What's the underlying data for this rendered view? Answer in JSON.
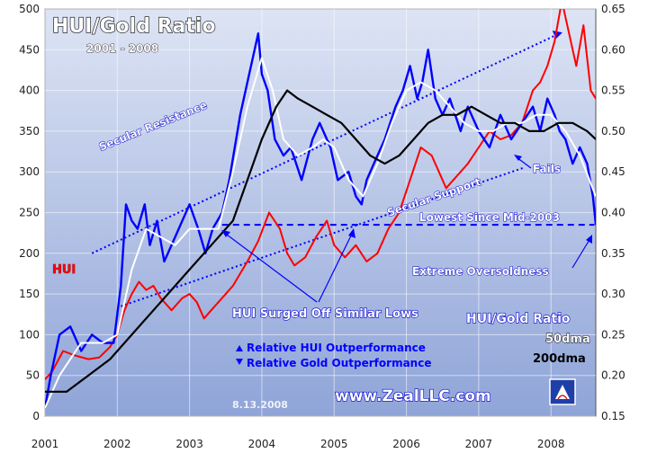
{
  "chart_data": {
    "type": "line",
    "title": "HUI/Gold Ratio",
    "subtitle": "2001 - 2008",
    "date_stamp": "8.13.2008",
    "website": "www.ZealLLC.com",
    "x_ticks": [
      "2001",
      "2002",
      "2003",
      "2004",
      "2005",
      "2006",
      "2007",
      "2008"
    ],
    "x_range": [
      2001.0,
      2008.62
    ],
    "y_left": {
      "ticks": [
        "0",
        "50",
        "100",
        "150",
        "200",
        "250",
        "300",
        "350",
        "400",
        "450",
        "500"
      ],
      "range": [
        0,
        500
      ]
    },
    "y_right": {
      "ticks": [
        "0.15",
        "0.20",
        "0.25",
        "0.30",
        "0.35",
        "0.40",
        "0.45",
        "0.50",
        "0.55",
        "0.60",
        "0.65"
      ],
      "range": [
        0.15,
        0.65
      ]
    },
    "grid": true,
    "colors": {
      "hui": "#ff0000",
      "ratio": "#0000ff",
      "ratio_50dma": "#ffffff",
      "ratio_200dma": "#000000",
      "annotation": "#0000ff",
      "bg_top": "#dde4f4",
      "bg_bottom": "#8fa4d8"
    },
    "series": [
      {
        "name": "HUI",
        "axis": "left",
        "x": [
          2001.0,
          2001.1,
          2001.25,
          2001.4,
          2001.6,
          2001.75,
          2001.9,
          2002.0,
          2002.1,
          2002.2,
          2002.3,
          2002.4,
          2002.5,
          2002.6,
          2002.75,
          2002.9,
          2003.0,
          2003.1,
          2003.2,
          2003.3,
          2003.45,
          2003.6,
          2003.8,
          2003.95,
          2004.1,
          2004.25,
          2004.35,
          2004.45,
          2004.6,
          2004.75,
          2004.9,
          2005.0,
          2005.15,
          2005.3,
          2005.45,
          2005.6,
          2005.75,
          2005.9,
          2006.05,
          2006.2,
          2006.35,
          2006.45,
          2006.55,
          2006.7,
          2006.85,
          2007.0,
          2007.15,
          2007.3,
          2007.45,
          2007.6,
          2007.75,
          2007.85,
          2007.95,
          2008.05,
          2008.15,
          2008.25,
          2008.35,
          2008.45,
          2008.55,
          2008.62
        ],
        "values": [
          45,
          55,
          80,
          75,
          70,
          72,
          85,
          100,
          130,
          150,
          165,
          155,
          160,
          145,
          130,
          145,
          150,
          140,
          120,
          130,
          145,
          160,
          190,
          215,
          250,
          230,
          200,
          185,
          195,
          220,
          240,
          210,
          195,
          210,
          190,
          200,
          230,
          250,
          290,
          330,
          320,
          300,
          280,
          295,
          310,
          330,
          350,
          340,
          345,
          360,
          400,
          410,
          430,
          460,
          510,
          470,
          430,
          480,
          400,
          390
        ]
      },
      {
        "name": "HUI/Gold Ratio",
        "axis": "right",
        "x": [
          2001.0,
          2001.08,
          2001.2,
          2001.35,
          2001.5,
          2001.65,
          2001.8,
          2001.95,
          2002.05,
          2002.12,
          2002.2,
          2002.28,
          2002.38,
          2002.45,
          2002.55,
          2002.65,
          2002.75,
          2002.85,
          2003.0,
          2003.12,
          2003.22,
          2003.32,
          2003.45,
          2003.55,
          2003.7,
          2003.85,
          2003.95,
          2004.0,
          2004.08,
          2004.18,
          2004.3,
          2004.4,
          2004.55,
          2004.7,
          2004.8,
          2004.95,
          2005.05,
          2005.2,
          2005.3,
          2005.38,
          2005.45,
          2005.55,
          2005.7,
          2005.85,
          2005.95,
          2006.05,
          2006.15,
          2006.22,
          2006.3,
          2006.4,
          2006.5,
          2006.6,
          2006.75,
          2006.85,
          2007.0,
          2007.15,
          2007.3,
          2007.45,
          2007.6,
          2007.75,
          2007.85,
          2007.95,
          2008.05,
          2008.12,
          2008.2,
          2008.3,
          2008.4,
          2008.5,
          2008.58,
          2008.62
        ],
        "values": [
          0.16,
          0.2,
          0.25,
          0.26,
          0.23,
          0.25,
          0.24,
          0.24,
          0.31,
          0.41,
          0.39,
          0.38,
          0.41,
          0.36,
          0.39,
          0.34,
          0.36,
          0.38,
          0.41,
          0.38,
          0.35,
          0.38,
          0.4,
          0.44,
          0.52,
          0.58,
          0.62,
          0.57,
          0.55,
          0.49,
          0.47,
          0.48,
          0.44,
          0.49,
          0.51,
          0.48,
          0.44,
          0.45,
          0.42,
          0.41,
          0.44,
          0.46,
          0.49,
          0.53,
          0.55,
          0.58,
          0.54,
          0.56,
          0.6,
          0.54,
          0.52,
          0.54,
          0.5,
          0.53,
          0.5,
          0.48,
          0.52,
          0.49,
          0.51,
          0.53,
          0.5,
          0.54,
          0.52,
          0.5,
          0.49,
          0.46,
          0.48,
          0.46,
          0.42,
          0.385
        ]
      },
      {
        "name": "50dma",
        "axis": "right",
        "x": [
          2001.0,
          2001.2,
          2001.5,
          2001.8,
          2002.0,
          2002.2,
          2002.4,
          2002.6,
          2002.8,
          2003.0,
          2003.2,
          2003.4,
          2003.6,
          2003.8,
          2004.0,
          2004.15,
          2004.3,
          2004.5,
          2004.7,
          2004.85,
          2005.0,
          2005.2,
          2005.4,
          2005.6,
          2005.8,
          2006.0,
          2006.2,
          2006.4,
          2006.6,
          2006.8,
          2007.0,
          2007.2,
          2007.4,
          2007.6,
          2007.8,
          2008.0,
          2008.2,
          2008.4,
          2008.62
        ],
        "values": [
          0.16,
          0.2,
          0.24,
          0.24,
          0.25,
          0.33,
          0.38,
          0.37,
          0.36,
          0.38,
          0.38,
          0.38,
          0.45,
          0.53,
          0.59,
          0.55,
          0.49,
          0.47,
          0.48,
          0.49,
          0.48,
          0.44,
          0.42,
          0.46,
          0.51,
          0.55,
          0.56,
          0.55,
          0.53,
          0.51,
          0.5,
          0.5,
          0.51,
          0.51,
          0.52,
          0.52,
          0.5,
          0.47,
          0.42
        ]
      },
      {
        "name": "200dma",
        "axis": "right",
        "x": [
          2001.0,
          2001.3,
          2001.6,
          2001.9,
          2002.2,
          2002.5,
          2002.8,
          2003.0,
          2003.2,
          2003.4,
          2003.6,
          2003.8,
          2004.0,
          2004.2,
          2004.35,
          2004.5,
          2004.7,
          2004.9,
          2005.1,
          2005.3,
          2005.5,
          2005.7,
          2005.9,
          2006.1,
          2006.3,
          2006.5,
          2006.7,
          2006.9,
          2007.1,
          2007.3,
          2007.5,
          2007.7,
          2007.9,
          2008.1,
          2008.3,
          2008.5,
          2008.62
        ],
        "values": [
          0.18,
          0.18,
          0.2,
          0.22,
          0.25,
          0.28,
          0.31,
          0.33,
          0.35,
          0.37,
          0.39,
          0.44,
          0.49,
          0.53,
          0.55,
          0.54,
          0.53,
          0.52,
          0.51,
          0.49,
          0.47,
          0.46,
          0.47,
          0.49,
          0.51,
          0.52,
          0.52,
          0.53,
          0.52,
          0.51,
          0.51,
          0.5,
          0.5,
          0.51,
          0.51,
          0.5,
          0.49
        ]
      }
    ],
    "labels": {
      "hui_label": "HUI",
      "ratio_label": "HUI/Gold Ratio",
      "dma50_label": "50dma",
      "dma200_label": "200dma",
      "legend_up": "Relative HUI Outperformance",
      "legend_down": "Relative Gold Outperformance",
      "secular_resistance": "Secular Resistance",
      "secular_support": "Secular Support",
      "fails": "Fails",
      "lowest": "Lowest Since Mid-2003",
      "oversold": "Extreme Oversoldness",
      "surged": "HUI Surged Off Similar Lows"
    },
    "lines": {
      "resistance": {
        "x": [
          2001.65,
          2008.12
        ],
        "y": [
          0.35,
          0.62
        ]
      },
      "support": {
        "x": [
          2002.05,
          2007.62
        ],
        "y": [
          0.285,
          0.455
        ]
      },
      "lowest_level": {
        "x": [
          2003.45,
          2008.6
        ],
        "y": [
          0.385,
          0.385
        ]
      }
    }
  }
}
